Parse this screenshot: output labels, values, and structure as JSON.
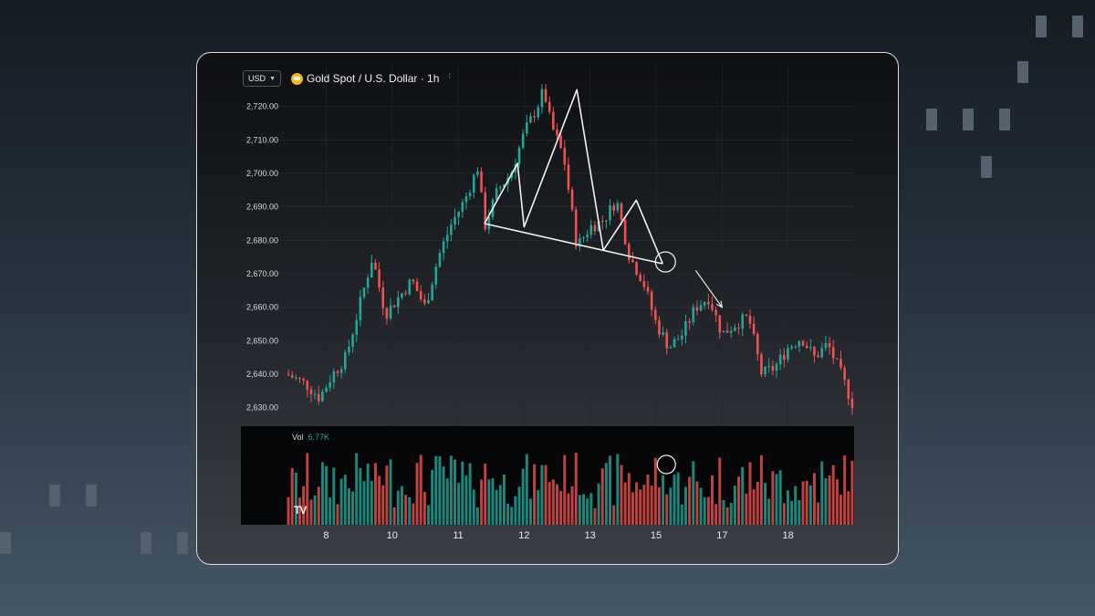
{
  "header": {
    "currency": "USD",
    "title": "Gold Spot / U.S. Dollar · 1h",
    "extra_mark": "⁝"
  },
  "volume": {
    "label": "Vol",
    "value": "6.77K"
  },
  "logo_text": "TV",
  "colors": {
    "up": "#26a69a",
    "down": "#ef5350",
    "pattern": "#f2f2f2"
  },
  "chart_data": {
    "type": "candlestick",
    "title": "Gold Spot / U.S. Dollar · 1h",
    "xlabel": "",
    "ylabel": "",
    "y_ticks": [
      2630,
      2640,
      2650,
      2660,
      2670,
      2680,
      2690,
      2700,
      2710,
      2720
    ],
    "y_tick_labels": [
      "2,630.00",
      "2,640.00",
      "2,650.00",
      "2,660.00",
      "2,670.00",
      "2,680.00",
      "2,690.00",
      "2,700.00",
      "2,710.00",
      "2,720.00"
    ],
    "ylim": [
      2625,
      2730
    ],
    "x_ticks": [
      "8",
      "10",
      "11",
      "12",
      "13",
      "15",
      "17",
      "18"
    ],
    "x_tick_positions": [
      6,
      16,
      26,
      36,
      46,
      56,
      66,
      76
    ],
    "xlim": [
      0,
      86
    ],
    "price_path": [
      [
        0,
        2640
      ],
      [
        3,
        2637
      ],
      [
        5,
        2633
      ],
      [
        7,
        2640
      ],
      [
        9,
        2645
      ],
      [
        11,
        2660
      ],
      [
        13,
        2675
      ],
      [
        15,
        2658
      ],
      [
        17,
        2663
      ],
      [
        19,
        2668
      ],
      [
        21,
        2660
      ],
      [
        23,
        2675
      ],
      [
        25,
        2685
      ],
      [
        27,
        2692
      ],
      [
        29,
        2702
      ],
      [
        30,
        2684
      ],
      [
        32,
        2695
      ],
      [
        34,
        2700
      ],
      [
        36,
        2712
      ],
      [
        38,
        2720
      ],
      [
        39,
        2725
      ],
      [
        40,
        2715
      ],
      [
        42,
        2705
      ],
      [
        44,
        2678
      ],
      [
        46,
        2684
      ],
      [
        48,
        2686
      ],
      [
        50,
        2692
      ],
      [
        52,
        2675
      ],
      [
        54,
        2668
      ],
      [
        56,
        2655
      ],
      [
        58,
        2648
      ],
      [
        60,
        2652
      ],
      [
        62,
        2660
      ],
      [
        64,
        2663
      ],
      [
        66,
        2652
      ],
      [
        68,
        2655
      ],
      [
        70,
        2657
      ],
      [
        72,
        2640
      ],
      [
        74,
        2642
      ],
      [
        76,
        2648
      ],
      [
        78,
        2651
      ],
      [
        80,
        2645
      ],
      [
        82,
        2649
      ],
      [
        84,
        2640
      ],
      [
        86,
        2630
      ]
    ],
    "annotations": {
      "pattern_peaks": [
        [
          30,
          2685
        ],
        [
          35,
          2703
        ],
        [
          36,
          2684
        ],
        [
          44,
          2725
        ],
        [
          48,
          2677
        ],
        [
          53,
          2692
        ],
        [
          57,
          2673
        ]
      ],
      "neckline": [
        [
          30,
          2685
        ],
        [
          57,
          2673
        ]
      ],
      "breakout_circle": [
        57,
        2673
      ],
      "arrow": [
        [
          62,
          2671
        ],
        [
          66,
          2660
        ]
      ]
    },
    "volume_series": "per-candle volume bars, last value 6.77K"
  }
}
